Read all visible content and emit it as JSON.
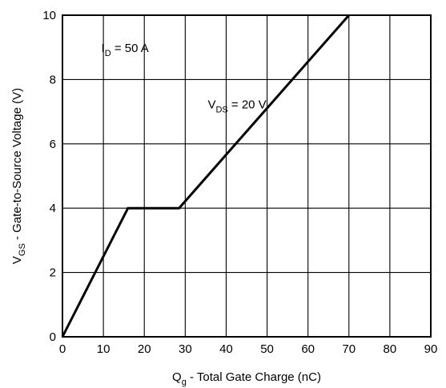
{
  "chart_data": {
    "type": "line",
    "xlabel": {
      "main": "Q",
      "sub": "g",
      "rest": " - Total Gate Charge (nC)"
    },
    "ylabel": {
      "main": "V",
      "sub": "GS",
      "rest": " - Gate-to-Source Voltage (V)"
    },
    "xlim": [
      0,
      90
    ],
    "ylim": [
      0,
      10
    ],
    "xticks": [
      0,
      10,
      20,
      30,
      40,
      50,
      60,
      70,
      80,
      90
    ],
    "yticks": [
      0,
      2,
      4,
      6,
      8,
      10
    ],
    "grid": true,
    "series": [
      {
        "x": [
          0,
          16,
          28.5,
          70
        ],
        "y": [
          0,
          4,
          4,
          10
        ]
      }
    ],
    "annotations": [
      {
        "main": "I",
        "sub": "D",
        "rest": " = 50 A",
        "x": 9.5,
        "y": 8.85
      },
      {
        "main": "V",
        "sub": "DS",
        "rest": " = 20 V",
        "x": 35.5,
        "y": 7.1
      }
    ]
  }
}
